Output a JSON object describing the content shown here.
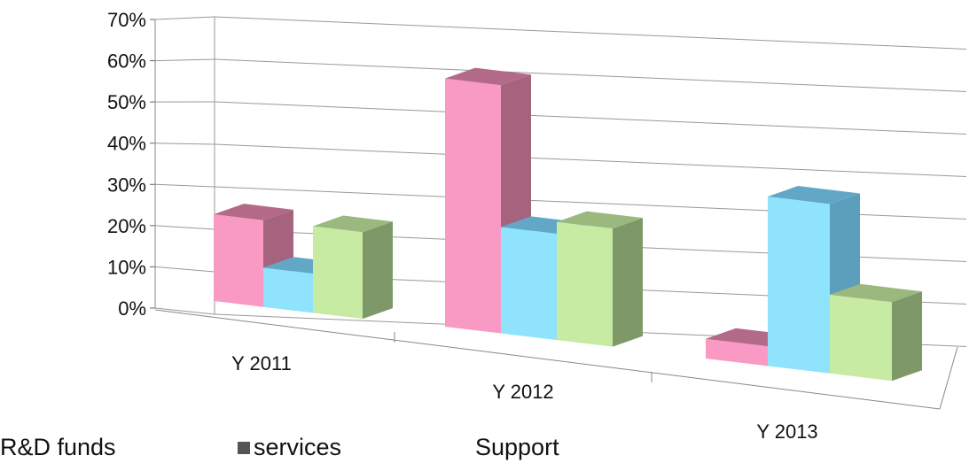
{
  "chart_data": {
    "type": "bar",
    "categories": [
      "Y 2011",
      "Y 2012",
      "Y 2013"
    ],
    "series": [
      {
        "name": "R&D funds",
        "values": [
          22,
          63,
          5
        ],
        "color": "#f99ac4",
        "side_color": "#a6637d",
        "top_color": "#b26a88"
      },
      {
        "name": "services",
        "values": [
          10,
          27,
          43
        ],
        "color": "#8fe3fd",
        "side_color": "#5c9fbc",
        "top_color": "#62a7c6"
      },
      {
        "name": "Support",
        "values": [
          22,
          30,
          20
        ],
        "color": "#c8eba4",
        "side_color": "#7e9867",
        "top_color": "#9bb87f"
      }
    ],
    "yticks": [
      "0%",
      "10%",
      "20%",
      "30%",
      "40%",
      "50%",
      "60%",
      "70%"
    ],
    "ylim": [
      0,
      70
    ],
    "grid": true,
    "legend_position": "bottom-left",
    "legend_swatch_colors": [
      "#ffffff",
      "#555555",
      "#ffffff"
    ]
  }
}
